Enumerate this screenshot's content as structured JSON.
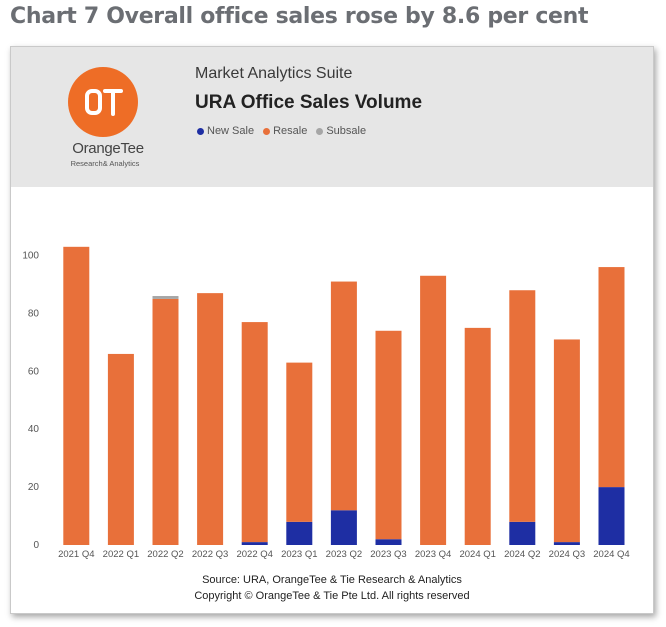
{
  "page_title": "Chart 7 Overall office sales rose by 8.6 per cent",
  "header": {
    "logo_name": "OrangeTee",
    "logo_sub": "Research& Analytics",
    "suite": "Market Analytics Suite",
    "title": "URA Office Sales Volume"
  },
  "chart_data": {
    "type": "bar",
    "stacked": true,
    "title": "URA Office Sales Volume",
    "categories": [
      "2021 Q4",
      "2022 Q1",
      "2022 Q2",
      "2022 Q3",
      "2022 Q4",
      "2023 Q1",
      "2023 Q2",
      "2023 Q3",
      "2023 Q4",
      "2024 Q1",
      "2024 Q2",
      "2024 Q3",
      "2024 Q4"
    ],
    "series": [
      {
        "name": "New Sale",
        "color": "#1e2ea3",
        "values": [
          0,
          0,
          0,
          0,
          1,
          8,
          12,
          2,
          0,
          0,
          8,
          1,
          20
        ]
      },
      {
        "name": "Resale",
        "color": "#e8703a",
        "values": [
          103,
          66,
          85,
          87,
          76,
          55,
          79,
          72,
          93,
          75,
          80,
          70,
          76
        ]
      },
      {
        "name": "Subsale",
        "color": "#a6a6a6",
        "values": [
          0,
          0,
          1,
          0,
          0,
          0,
          0,
          0,
          0,
          0,
          0,
          0,
          0
        ]
      }
    ],
    "yticks": [
      0,
      20,
      40,
      60,
      80,
      100
    ],
    "ylim": [
      0,
      110
    ],
    "legend_position": "top-left",
    "grid": false
  },
  "footer": {
    "source": "Source: URA, OrangeTee & Tie Research & Analytics",
    "copyright": "Copyright © OrangeTee & Tie Pte Ltd. All rights reserved"
  }
}
